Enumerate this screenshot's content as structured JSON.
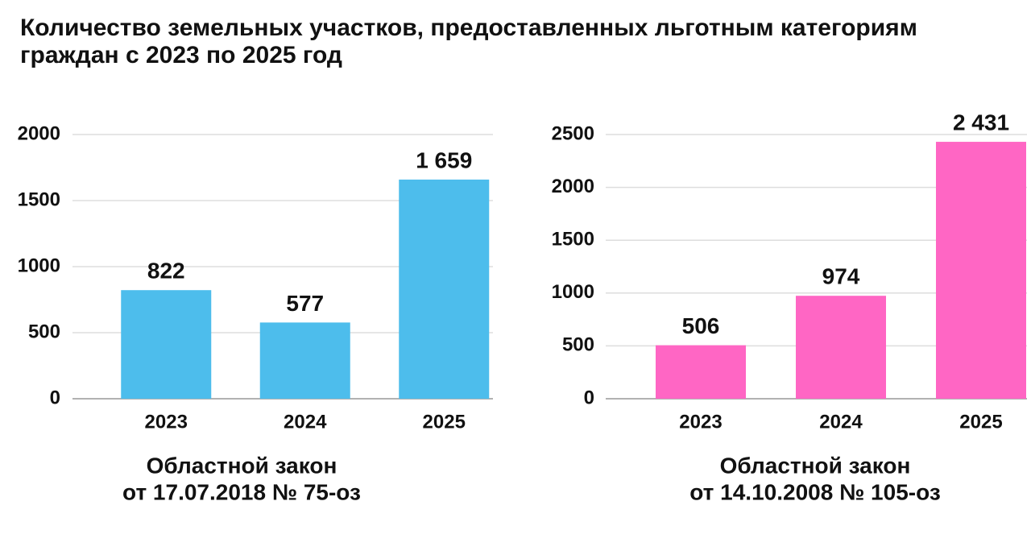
{
  "title": "Количество земельных участков, предоставленных льготным категориям граждан с 2023 по 2025 год",
  "chart_data": [
    {
      "type": "bar",
      "subtitle": [
        "Областной закон",
        "от 17.07.2018 № 75-оз"
      ],
      "categories": [
        "2023",
        "2024",
        "2025"
      ],
      "values": [
        822,
        577,
        1659
      ],
      "value_labels": [
        "822",
        "577",
        "1 659"
      ],
      "color": "#4dbdec",
      "ylim": [
        0,
        2000
      ],
      "yticks": [
        0,
        500,
        1000,
        1500,
        2000
      ],
      "grid": true
    },
    {
      "type": "bar",
      "subtitle": [
        "Областной закон",
        "от 14.10.2008 № 105-оз"
      ],
      "categories": [
        "2023",
        "2024",
        "2025"
      ],
      "values": [
        506,
        974,
        2431
      ],
      "value_labels": [
        "506",
        "974",
        "2 431"
      ],
      "color": "#ff66c4",
      "ylim": [
        0,
        2500
      ],
      "yticks": [
        0,
        500,
        1000,
        1500,
        2000,
        2500
      ],
      "grid": true
    }
  ]
}
